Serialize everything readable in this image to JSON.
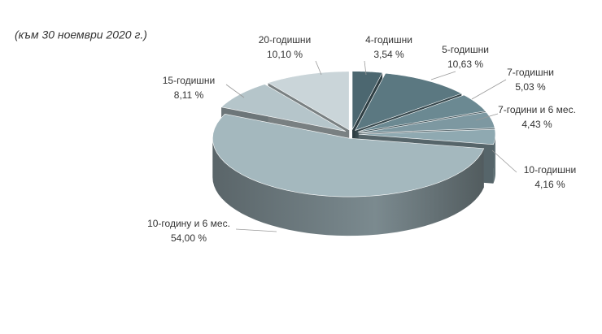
{
  "chart_data": {
    "type": "pie3d",
    "subtitle": "(към 30 ноември 2020 г.)",
    "categories": [
      "4-годишни",
      "5-годишни",
      "7-годишни",
      "7-години и 6 мес.",
      "10-годишни",
      "10-годину и 6 мес.",
      "15-годишни",
      "20-годишни"
    ],
    "values": [
      3.54,
      10.63,
      5.03,
      4.43,
      4.16,
      54.0,
      8.11,
      10.1
    ],
    "value_labels": [
      "3,54 %",
      "10,63 %",
      "5,03 %",
      "4,43 %",
      "4,16 %",
      "54,00 %",
      "8,11 %",
      "10,10 %"
    ],
    "colors": [
      "#4c6770",
      "#5b7881",
      "#6b8992",
      "#7d98a1",
      "#8fa9b1",
      "#a4b8be",
      "#b5c5ca",
      "#cad5d9"
    ]
  }
}
